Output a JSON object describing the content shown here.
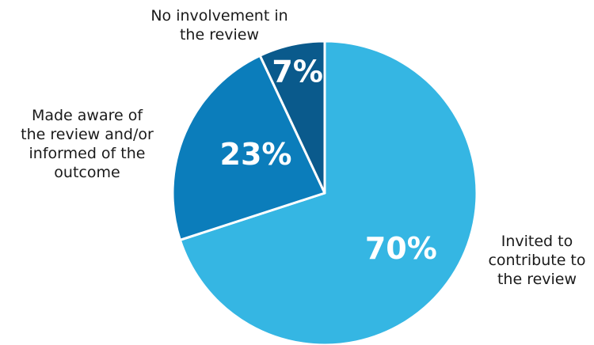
{
  "chart_data": {
    "type": "pie",
    "title": "",
    "slices": [
      {
        "label": "Invited to contribute to the review",
        "label_lines": [
          "Invited to",
          "contribute to",
          "the review"
        ],
        "value": 70,
        "display": "70%",
        "color": "#35B6E3"
      },
      {
        "label": "Made aware of the review and/or informed of the outcome",
        "label_lines": [
          "Made aware of",
          "the review and/or",
          "informed of the",
          "outcome"
        ],
        "value": 23,
        "display": "23%",
        "color": "#0B7DBB"
      },
      {
        "label": "No involvement in the review",
        "label_lines": [
          "No involvement in",
          "the review"
        ],
        "value": 7,
        "display": "7%",
        "color": "#0A5A8C"
      }
    ],
    "start": "12 o'clock",
    "direction": "clockwise",
    "legend": "none"
  }
}
